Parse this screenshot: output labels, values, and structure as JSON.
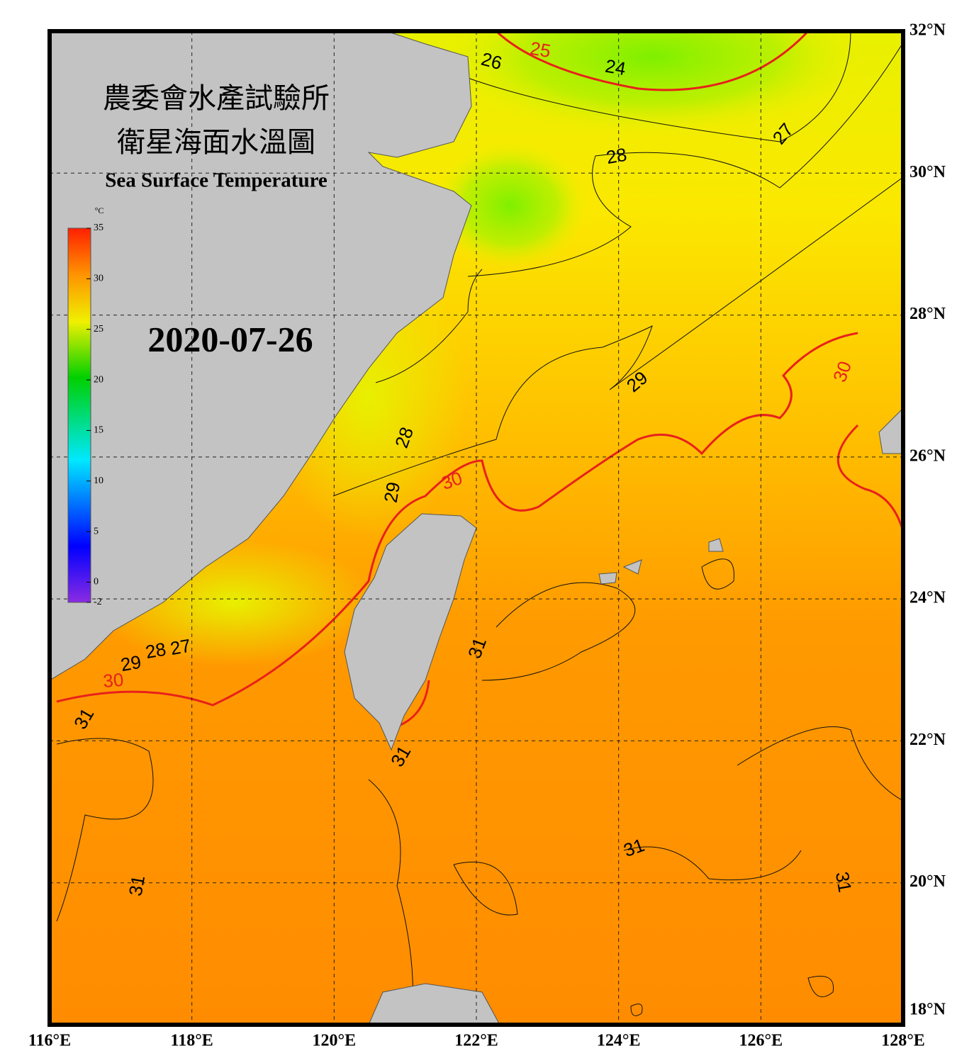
{
  "map": {
    "title": "農委會水產試驗所",
    "subtitle": "衛星海面水溫圖",
    "title_en": "Sea Surface Temperature",
    "date": "2020-07-26",
    "colorbar": {
      "unit": "°C",
      "lim": [
        -2,
        35
      ],
      "ticks": [
        -2,
        0,
        5,
        10,
        15,
        20,
        25,
        30,
        35
      ]
    },
    "xlim": [
      116,
      128
    ],
    "ylim": [
      18,
      32
    ],
    "xticks": [
      {
        "value": 116,
        "label": "116°E"
      },
      {
        "value": 118,
        "label": "118°E"
      },
      {
        "value": 120,
        "label": "120°E"
      },
      {
        "value": 122,
        "label": "122°E"
      },
      {
        "value": 124,
        "label": "124°E"
      },
      {
        "value": 126,
        "label": "126°E"
      },
      {
        "value": 128,
        "label": "128°E"
      }
    ],
    "yticks": [
      {
        "value": 18,
        "label": "18°N"
      },
      {
        "value": 20,
        "label": "20°N"
      },
      {
        "value": 22,
        "label": "22°N"
      },
      {
        "value": 24,
        "label": "24°N"
      },
      {
        "value": 26,
        "label": "26°N"
      },
      {
        "value": 28,
        "label": "28°N"
      },
      {
        "value": 30,
        "label": "30°N"
      },
      {
        "value": 32,
        "label": "32°N"
      }
    ],
    "contour_labels": [
      26,
      25,
      24,
      27,
      28,
      29,
      30,
      28,
      29,
      30,
      27,
      28,
      29,
      30,
      31,
      31,
      31,
      31,
      31,
      31
    ]
  }
}
